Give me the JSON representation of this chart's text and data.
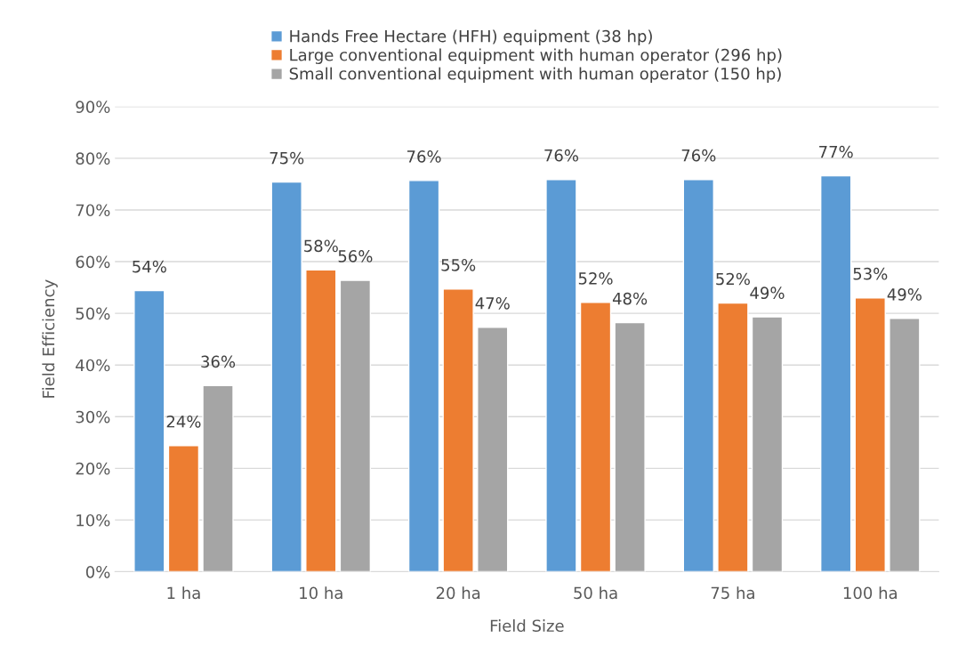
{
  "chart_data": {
    "type": "bar",
    "xlabel": "Field Size",
    "ylabel": "Field Efficiency",
    "categories": [
      "1 ha",
      "10 ha",
      "20 ha",
      "50 ha",
      "75 ha",
      "100 ha"
    ],
    "series": [
      {
        "name": "Hands Free Hectare (HFH) equipment (38 hp)",
        "color": "#5b9bd5",
        "values": [
          54.4,
          75.4,
          75.7,
          75.9,
          75.9,
          76.6
        ],
        "value_labels": [
          "54%",
          "75%",
          "76%",
          "76%",
          "76%",
          "77%"
        ]
      },
      {
        "name": "Large conventional equipment with human operator (296 hp)",
        "color": "#ed7d31",
        "values": [
          24.4,
          58.4,
          54.7,
          52.1,
          52.0,
          53.0
        ],
        "value_labels": [
          "24%",
          "58%",
          "55%",
          "52%",
          "52%",
          "53%"
        ]
      },
      {
        "name": "Small conventional equipment with human operator (150 hp)",
        "color": "#a5a5a5",
        "values": [
          36.0,
          56.4,
          47.3,
          48.2,
          49.3,
          49.0
        ],
        "value_labels": [
          "36%",
          "56%",
          "47%",
          "48%",
          "49%",
          "49%"
        ]
      }
    ],
    "ylim": [
      0,
      90
    ],
    "yticks": [
      {
        "value": 0,
        "label": "0%"
      },
      {
        "value": 10,
        "label": "10%"
      },
      {
        "value": 20,
        "label": "20%"
      },
      {
        "value": 30,
        "label": "30%"
      },
      {
        "value": 40,
        "label": "40%"
      },
      {
        "value": 50,
        "label": "50%"
      },
      {
        "value": 60,
        "label": "60%"
      },
      {
        "value": 70,
        "label": "70%"
      },
      {
        "value": 80,
        "label": "80%"
      },
      {
        "value": 90,
        "label": "90%"
      }
    ],
    "grid": "y",
    "legend": "top"
  }
}
